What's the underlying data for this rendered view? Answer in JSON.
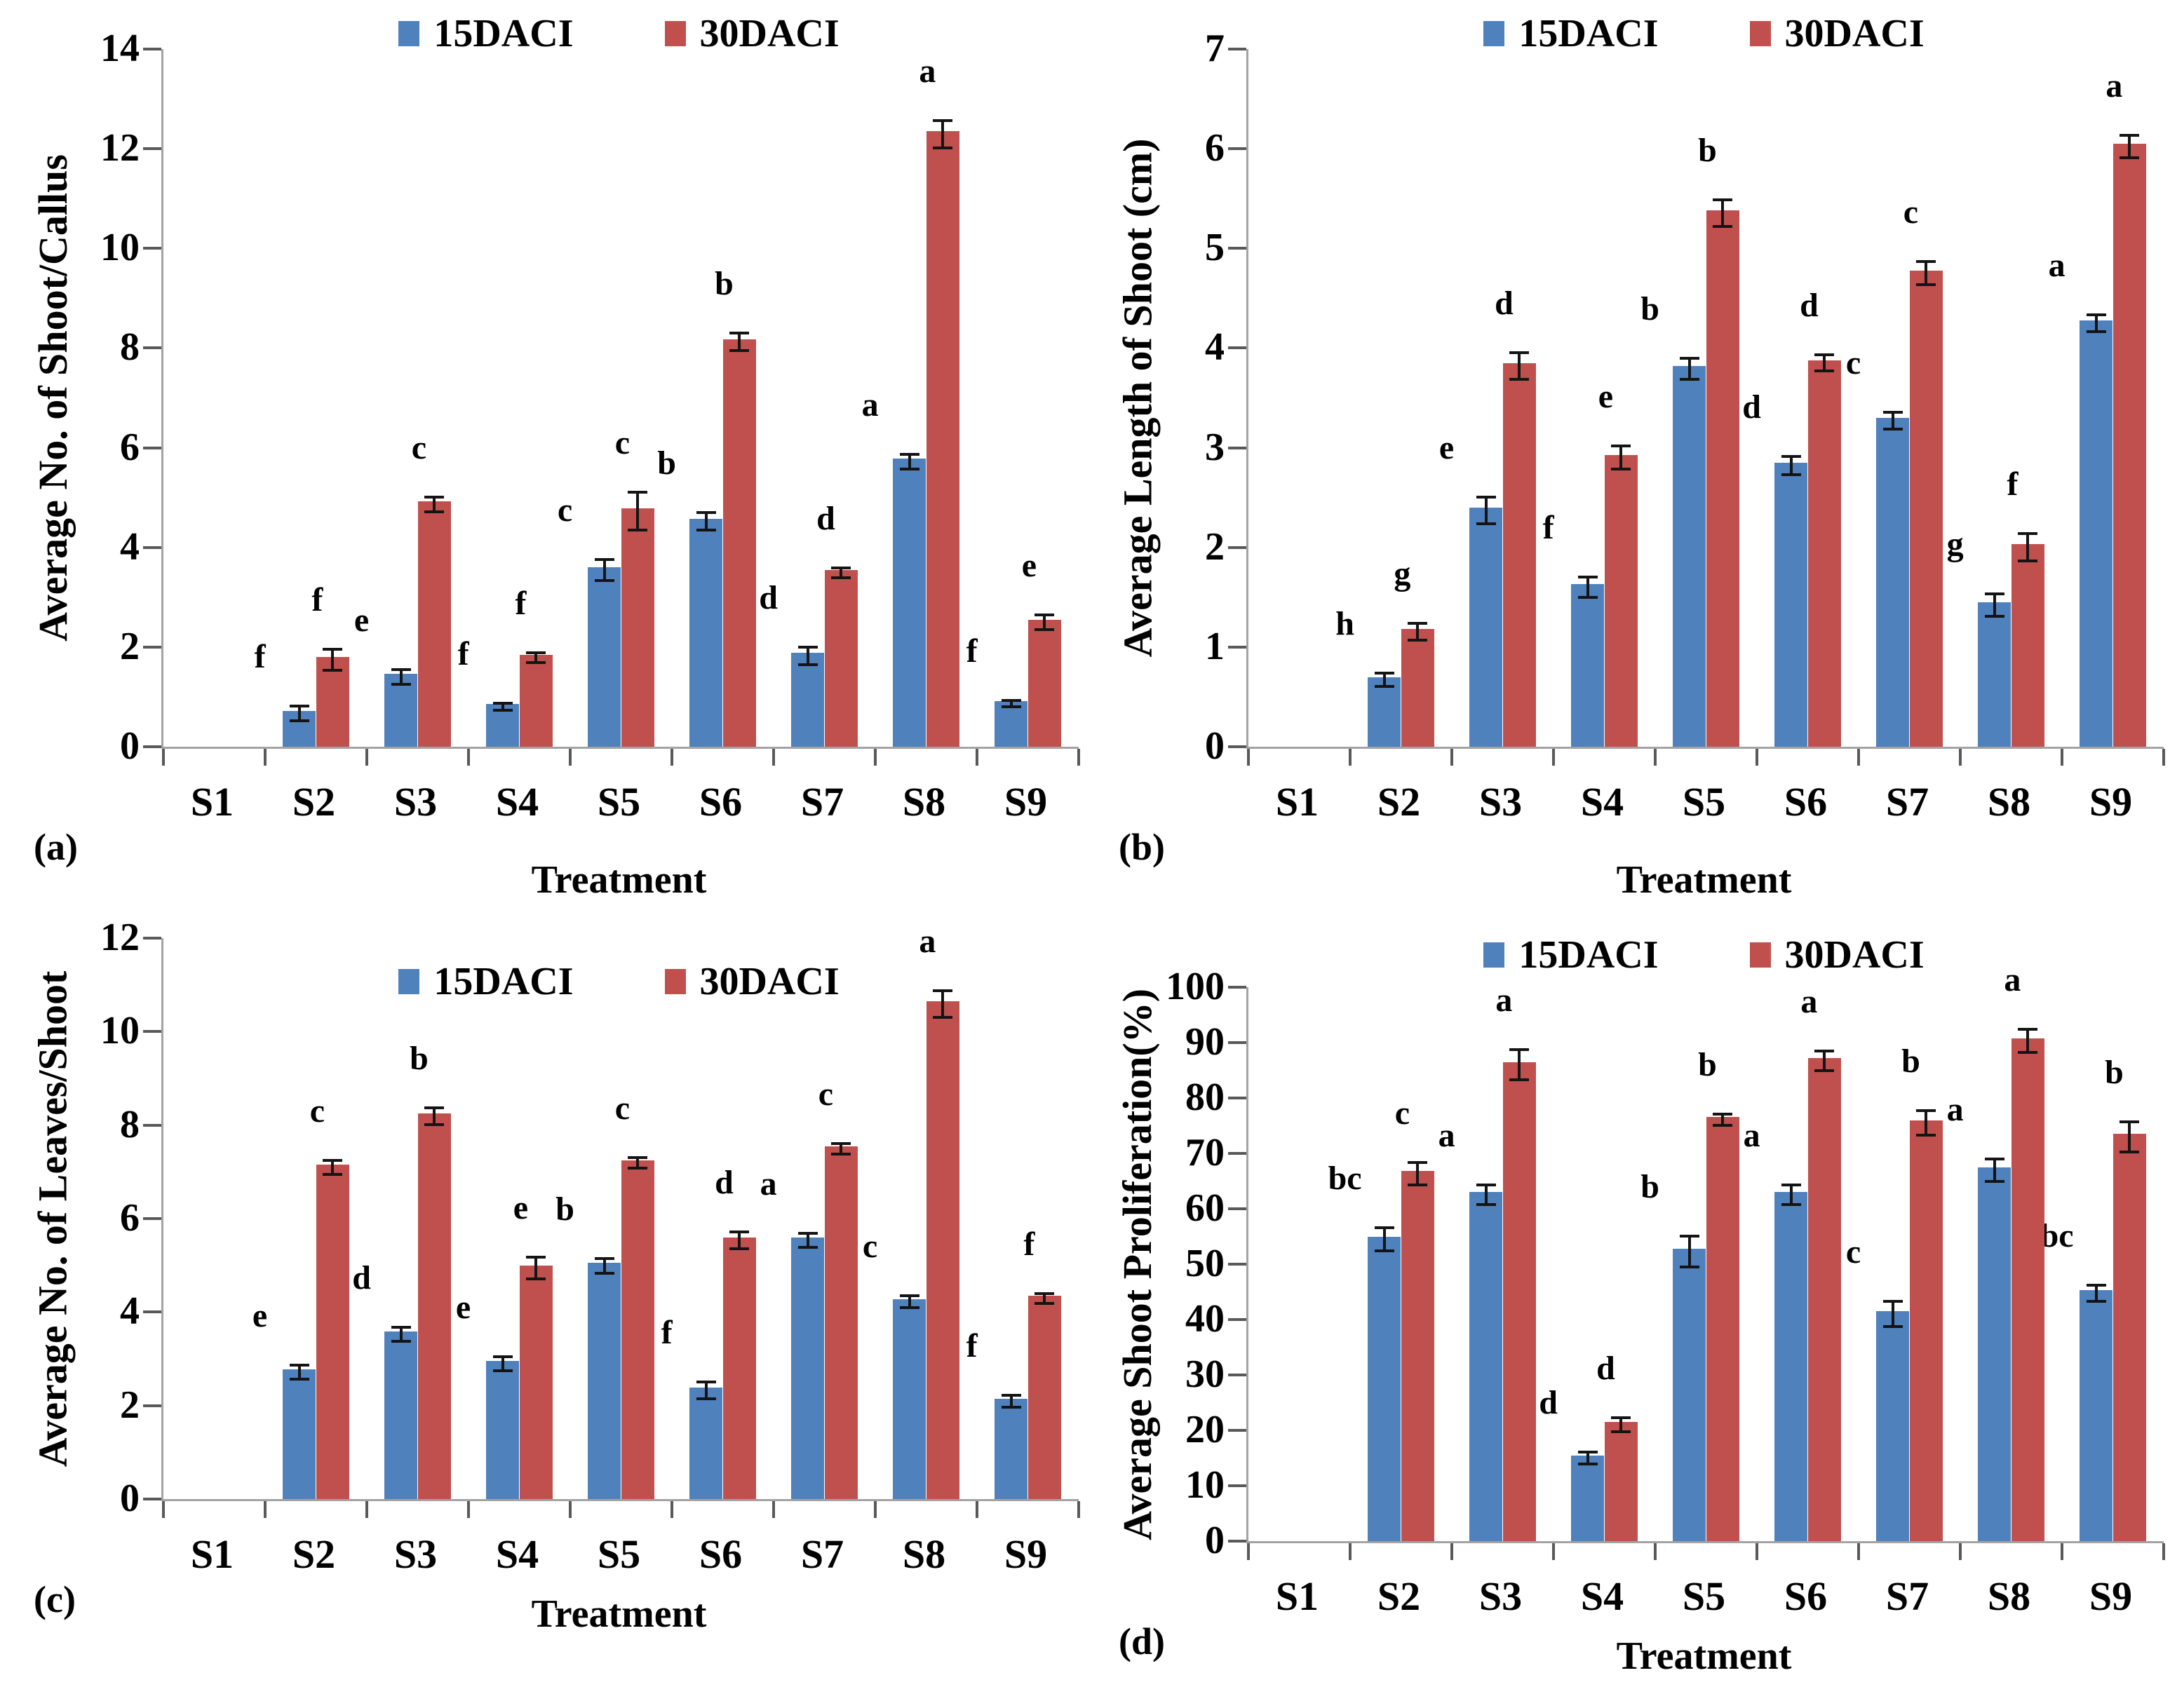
{
  "chart_data": [
    {
      "id": "a",
      "type": "bar",
      "panel_label": "(a)",
      "ylabel": "Average No. of Shoot/Callus",
      "xlabel": "Treatment",
      "ymin": 0,
      "ymax": 14,
      "ytick_step": 2,
      "grid": false,
      "legend_position": "top-center",
      "categories": [
        "S1",
        "S2",
        "S3",
        "S4",
        "S5",
        "S6",
        "S7",
        "S8",
        "S9"
      ],
      "series": [
        {
          "name": "15DACI",
          "color": "#4f81bd",
          "values": [
            0,
            0.72,
            1.46,
            0.86,
            3.6,
            4.58,
            1.88,
            5.78,
            0.92
          ],
          "errors": [
            0,
            0.12,
            0.12,
            0.04,
            0.18,
            0.15,
            0.15,
            0.12,
            0.04
          ],
          "letters": [
            "",
            "f",
            "e",
            "f",
            "c",
            "b",
            "d",
            "a",
            "f"
          ]
        },
        {
          "name": "30DACI",
          "color": "#c0504d",
          "values": [
            0,
            1.8,
            4.92,
            1.84,
            4.78,
            8.18,
            3.55,
            12.35,
            2.55
          ],
          "errors": [
            0,
            0.18,
            0.12,
            0.07,
            0.35,
            0.15,
            0.07,
            0.25,
            0.12
          ],
          "letters": [
            "",
            "f",
            "c",
            "f",
            "c",
            "b",
            "d",
            "a",
            "e"
          ]
        }
      ]
    },
    {
      "id": "b",
      "type": "bar",
      "panel_label": "(b)",
      "ylabel": "Average Length of Shoot (cm)",
      "xlabel": "Treatment",
      "ymin": 0,
      "ymax": 7,
      "ytick_step": 1,
      "grid": false,
      "legend_position": "top-center",
      "categories": [
        "S1",
        "S2",
        "S3",
        "S4",
        "S5",
        "S6",
        "S7",
        "S8",
        "S9"
      ],
      "series": [
        {
          "name": "15DACI",
          "color": "#4f81bd",
          "values": [
            0,
            0.7,
            2.4,
            1.63,
            3.82,
            2.85,
            3.3,
            1.45,
            4.28
          ],
          "errors": [
            0,
            0.05,
            0.12,
            0.09,
            0.09,
            0.08,
            0.07,
            0.1,
            0.07
          ],
          "letters": [
            "",
            "h",
            "e",
            "f",
            "b",
            "d",
            "c",
            "g",
            "a"
          ]
        },
        {
          "name": "30DACI",
          "color": "#c0504d",
          "values": [
            0,
            1.18,
            3.85,
            2.93,
            5.38,
            3.88,
            4.78,
            2.03,
            6.05
          ],
          "errors": [
            0,
            0.07,
            0.12,
            0.1,
            0.12,
            0.07,
            0.1,
            0.12,
            0.1
          ],
          "letters": [
            "",
            "g",
            "d",
            "e",
            "b",
            "d",
            "c",
            "f",
            "a"
          ]
        }
      ]
    },
    {
      "id": "c",
      "type": "bar",
      "panel_label": "(c)",
      "ylabel": "Average No. of Leaves/Shoot",
      "xlabel": "Treatment",
      "ymin": 0,
      "ymax": 12,
      "ytick_step": 2,
      "grid": false,
      "legend_position": "inside-top-center",
      "categories": [
        "S1",
        "S2",
        "S3",
        "S4",
        "S5",
        "S6",
        "S7",
        "S8",
        "S9"
      ],
      "series": [
        {
          "name": "15DACI",
          "color": "#4f81bd",
          "values": [
            0,
            2.78,
            3.58,
            2.95,
            5.05,
            2.38,
            5.6,
            4.28,
            2.15
          ],
          "errors": [
            0,
            0.12,
            0.12,
            0.12,
            0.13,
            0.15,
            0.12,
            0.1,
            0.1
          ],
          "letters": [
            "",
            "e",
            "d",
            "e",
            "b",
            "f",
            "a",
            "c",
            "f"
          ]
        },
        {
          "name": "30DACI",
          "color": "#c0504d",
          "values": [
            0,
            7.15,
            8.25,
            5.0,
            7.25,
            5.6,
            7.55,
            10.65,
            4.35
          ],
          "errors": [
            0,
            0.12,
            0.15,
            0.2,
            0.08,
            0.15,
            0.08,
            0.25,
            0.08
          ],
          "letters": [
            "",
            "c",
            "b",
            "e",
            "c",
            "d",
            "c",
            "a",
            "f"
          ]
        }
      ]
    },
    {
      "id": "d",
      "type": "bar",
      "panel_label": "(d)",
      "ylabel": "Average Shoot Proliferation(%)",
      "xlabel": "Treatment",
      "ymin": 0,
      "ymax": 100,
      "ytick_step": 10,
      "grid": false,
      "legend_position": "top-center",
      "categories": [
        "S1",
        "S2",
        "S3",
        "S4",
        "S5",
        "S6",
        "S7",
        "S8",
        "S9"
      ],
      "series": [
        {
          "name": "15DACI",
          "color": "#4f81bd",
          "values": [
            0,
            55.0,
            63.0,
            15.5,
            52.8,
            63.0,
            41.5,
            67.5,
            45.3
          ],
          "errors": [
            0,
            1.8,
            1.5,
            0.8,
            2.5,
            1.5,
            2.0,
            1.8,
            1.2
          ],
          "letters": [
            "",
            "bc",
            "a",
            "d",
            "b",
            "a",
            "c",
            "a",
            "bc"
          ]
        },
        {
          "name": "30DACI",
          "color": "#c0504d",
          "values": [
            0,
            66.8,
            86.5,
            21.5,
            76.6,
            87.2,
            76.0,
            90.8,
            73.5
          ],
          "errors": [
            0,
            1.8,
            2.5,
            1.0,
            0.8,
            1.5,
            2.0,
            1.8,
            2.5
          ],
          "letters": [
            "",
            "c",
            "a",
            "d",
            "b",
            "a",
            "b",
            "a",
            "b"
          ]
        }
      ]
    }
  ]
}
